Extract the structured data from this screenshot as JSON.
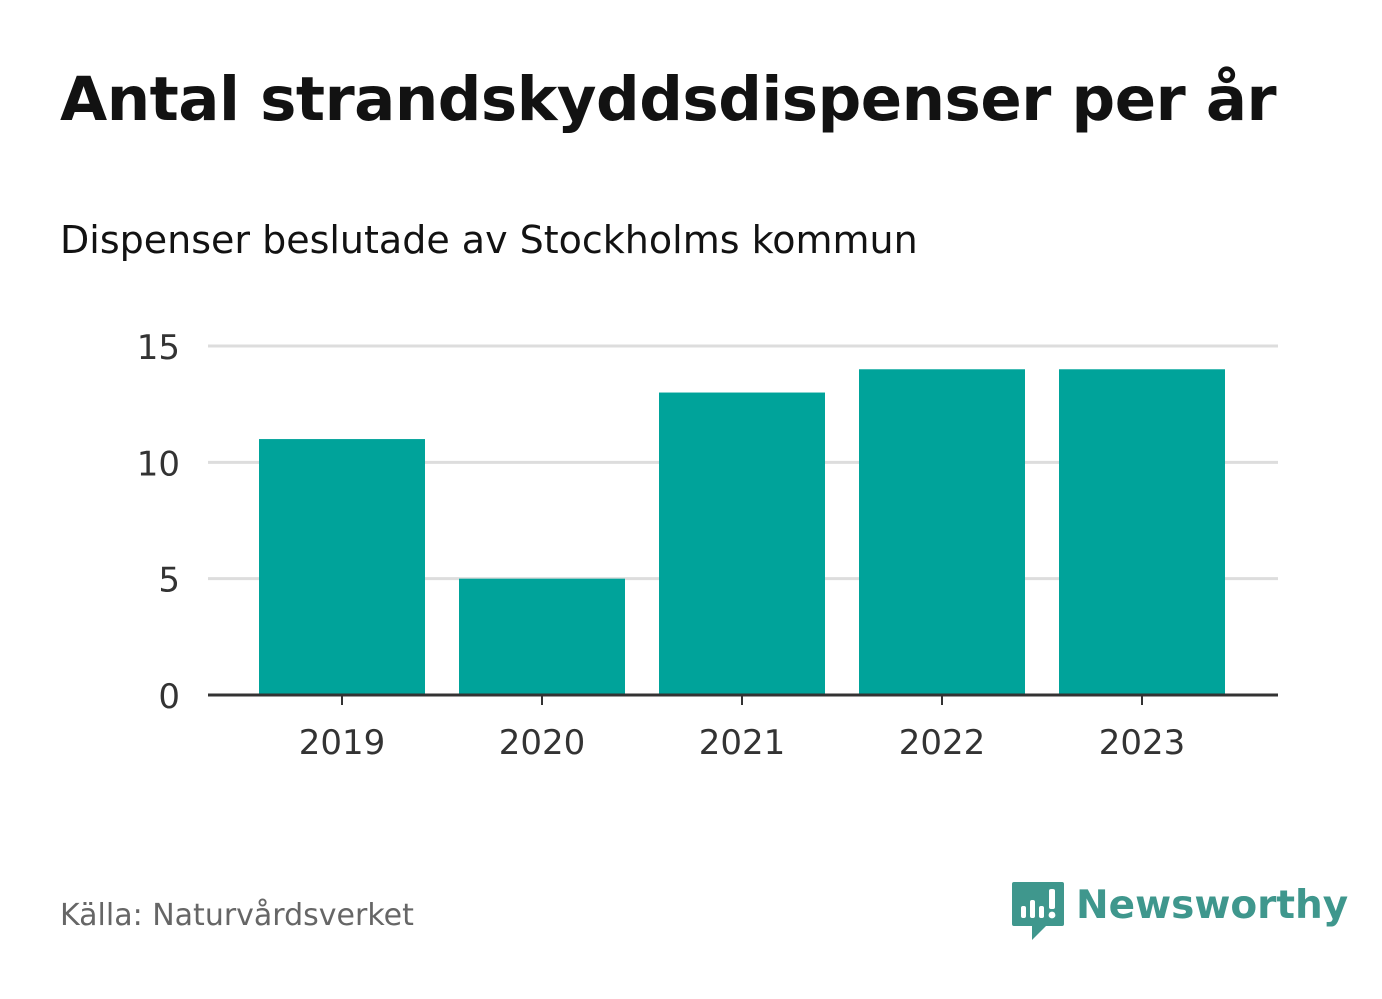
{
  "title": "Antal strandskyddsdispenser per år",
  "subtitle": "Dispenser beslutade av Stockholms kommun",
  "source": "Källa: Naturvårdsverket",
  "brand": {
    "name": "Newsworthy",
    "icon": "newsworthy-logo-icon",
    "color": "#3f978d"
  },
  "colors": {
    "bar": "#00a39a",
    "grid": "#dddddd",
    "axis": "#333333",
    "tick_text": "#333333"
  },
  "chart_data": {
    "type": "bar",
    "title": "Antal strandskyddsdispenser per år",
    "subtitle": "Dispenser beslutade av Stockholms kommun",
    "xlabel": "",
    "ylabel": "",
    "categories": [
      "2019",
      "2020",
      "2021",
      "2022",
      "2023"
    ],
    "values": [
      11,
      5,
      13,
      14,
      14
    ],
    "ylim": [
      0,
      15
    ],
    "yticks": [
      0,
      5,
      10,
      15
    ],
    "grid": true,
    "legend": "none"
  }
}
